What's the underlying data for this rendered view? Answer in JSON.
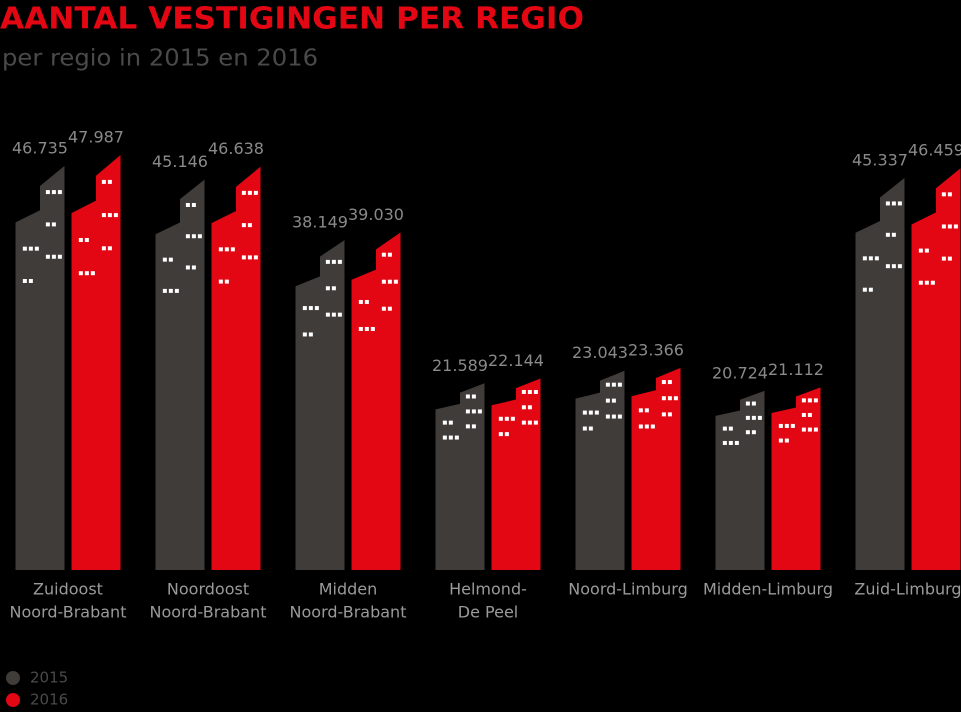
{
  "chart_data": {
    "type": "bar",
    "title": "AANTAL VESTIGINGEN PER REGIO",
    "subtitle": "per regio in 2015 en 2016",
    "categories": [
      [
        "Zuidoost",
        "Noord-Brabant"
      ],
      [
        "Noordoost",
        "Noord-Brabant"
      ],
      [
        "Midden",
        "Noord-Brabant"
      ],
      [
        "Helmond-",
        "De Peel"
      ],
      [
        "Noord-Limburg"
      ],
      [
        "Midden-Limburg"
      ],
      [
        "Zuid-Limburg"
      ]
    ],
    "series": [
      {
        "name": "2015",
        "color": "#3f3c39",
        "values": [
          46735,
          45146,
          38149,
          21589,
          23043,
          20724,
          45337
        ],
        "value_labels": [
          "46.735",
          "45.146",
          "38.149",
          "21.589",
          "23.043",
          "20.724",
          "45.337"
        ]
      },
      {
        "name": "2016",
        "color": "#e30613",
        "values": [
          47987,
          46638,
          39030,
          22144,
          23366,
          21112,
          46459
        ],
        "value_labels": [
          "47.987",
          "46.638",
          "39.030",
          "22.144",
          "23.366",
          "21.112",
          "46.459"
        ]
      }
    ],
    "legend": "bottom-left"
  }
}
